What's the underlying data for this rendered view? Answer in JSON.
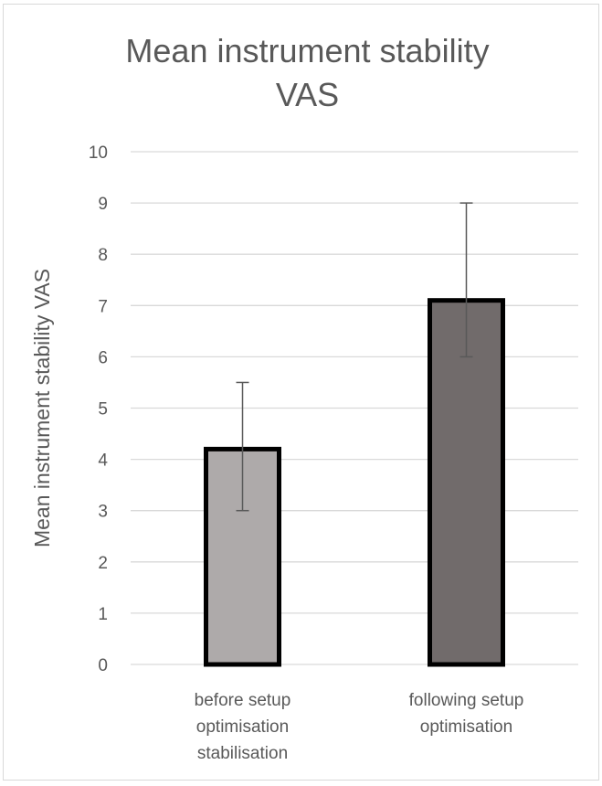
{
  "chart_data": {
    "type": "bar",
    "title": "Mean instrument stability VAS",
    "title_lines": [
      "Mean instrument stability",
      "VAS"
    ],
    "xlabel": "",
    "ylabel": "Mean instrument stability VAS",
    "ylim": [
      0,
      10
    ],
    "yticks": [
      0,
      1,
      2,
      3,
      4,
      5,
      6,
      7,
      8,
      9,
      10
    ],
    "grid": true,
    "legend": "none",
    "categories": [
      [
        "before setup",
        "optimisation",
        "stabilisation"
      ],
      [
        "following setup",
        "optimisation"
      ]
    ],
    "values": [
      4.2,
      7.1
    ],
    "error_bars": [
      {
        "low": 3.0,
        "high": 5.5
      },
      {
        "low": 6.0,
        "high": 9.0
      }
    ],
    "colors": [
      "#aeaaaa",
      "#716b6b"
    ],
    "bar_edge_color": "#000000",
    "gridline_color": "#d9d9d9",
    "text_color": "#595959"
  }
}
